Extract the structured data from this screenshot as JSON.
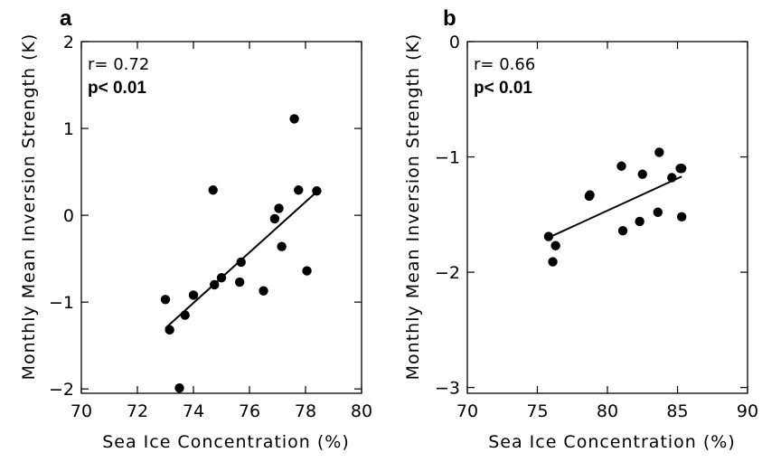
{
  "chart_data": [
    {
      "type": "scatter",
      "panel_label": "a",
      "xlabel": "Sea Ice Concentration (%)",
      "ylabel": "Monthly Mean Inversion Strength (K)",
      "xlim": [
        70,
        80
      ],
      "ylim": [
        -2.05,
        2
      ],
      "xticks": [
        "70",
        "72",
        "74",
        "76",
        "78",
        "80"
      ],
      "yticks": [
        "-2",
        "-1",
        "0",
        "1",
        "2"
      ],
      "grid": false,
      "stats": {
        "r": "r= 0.72",
        "p": "p< 0.01"
      },
      "points": {
        "x": [
          73.0,
          73.15,
          73.5,
          73.7,
          74.0,
          74.7,
          74.75,
          75.0,
          75.65,
          75.7,
          76.5,
          76.9,
          77.05,
          77.15,
          77.6,
          77.75,
          78.05,
          78.4
        ],
        "y": [
          -0.97,
          -1.32,
          -1.99,
          -1.15,
          -0.92,
          0.29,
          -0.8,
          -0.72,
          -0.77,
          -0.54,
          -0.87,
          -0.04,
          0.08,
          -0.36,
          1.11,
          0.29,
          -0.64,
          0.28
        ]
      },
      "fit_line": {
        "x": [
          73.0,
          78.4
        ],
        "y": [
          -1.3,
          0.27
        ]
      }
    },
    {
      "type": "scatter",
      "panel_label": "b",
      "xlabel": "Sea Ice Concentration (%)",
      "ylabel": "Monthly Mean Inversion Strength (K)",
      "xlim": [
        70,
        90
      ],
      "ylim": [
        -3.05,
        0
      ],
      "xticks": [
        "70",
        "75",
        "80",
        "85",
        "90"
      ],
      "yticks": [
        "-3",
        "-2",
        "-1",
        "0"
      ],
      "grid": false,
      "stats": {
        "r": "r= 0.66",
        "p": "p< 0.01"
      },
      "points": {
        "x": [
          75.8,
          76.1,
          76.3,
          78.7,
          78.75,
          81.0,
          81.1,
          82.3,
          82.5,
          83.6,
          83.7,
          84.6,
          85.2,
          85.3,
          85.3
        ],
        "y": [
          -1.69,
          -1.91,
          -1.77,
          -1.34,
          -1.33,
          -1.08,
          -1.64,
          -1.56,
          -1.15,
          -1.48,
          -0.96,
          -1.18,
          -1.1,
          -1.1,
          -1.52
        ]
      },
      "fit_line": {
        "x": [
          75.8,
          85.3
        ],
        "y": [
          -1.7,
          -1.17
        ]
      }
    }
  ]
}
